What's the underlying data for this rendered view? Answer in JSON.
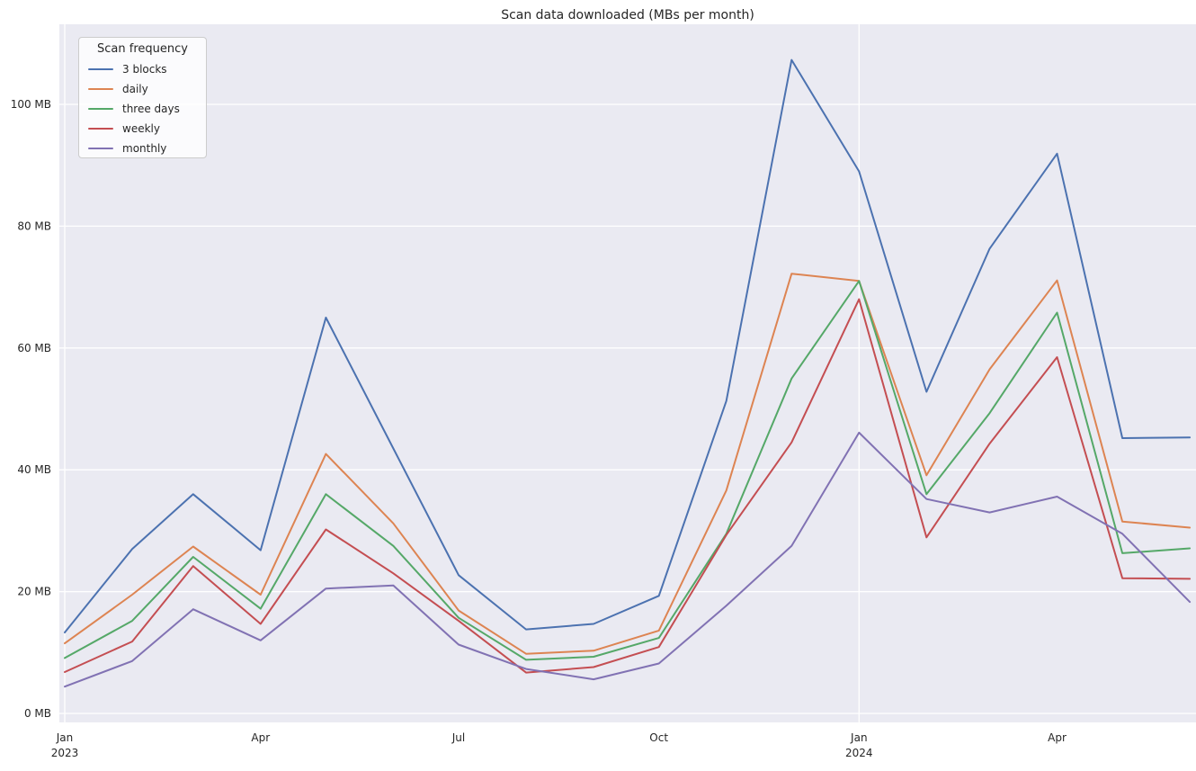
{
  "title": "Scan data downloaded (MBs per month)",
  "legend": {
    "title": "Scan frequency",
    "position": "upper left"
  },
  "axes": {
    "background_color": "#EAEAF2",
    "gridline_color": "#FFFFFF",
    "text_color": "#262626",
    "y_ticks": [
      {
        "value": 0,
        "label": "0 MB"
      },
      {
        "value": 20,
        "label": "20 MB"
      },
      {
        "value": 40,
        "label": "40 MB"
      },
      {
        "value": 60,
        "label": "60 MB"
      },
      {
        "value": 80,
        "label": "80 MB"
      },
      {
        "value": 100,
        "label": "100 MB"
      }
    ],
    "x_ticks": [
      {
        "day": 0,
        "label": "Jan",
        "year": "2023"
      },
      {
        "day": 90,
        "label": "Apr",
        "year": ""
      },
      {
        "day": 181,
        "label": "Jul",
        "year": ""
      },
      {
        "day": 273,
        "label": "Oct",
        "year": ""
      },
      {
        "day": 365,
        "label": "Jan",
        "year": "2024"
      },
      {
        "day": 456,
        "label": "Apr",
        "year": ""
      }
    ]
  },
  "chart_data": {
    "type": "line",
    "title": "Scan data downloaded (MBs per month)",
    "xlabel": "",
    "ylabel": "",
    "unit": "MB",
    "ylim": [
      -1.5,
      113.2
    ],
    "grid": "horizontal white gridlines on lavender background, vertical gridline at year boundary",
    "legend_position": "upper left",
    "x": [
      "2023-01",
      "2023-02",
      "2023-03",
      "2023-04",
      "2023-05",
      "2023-06",
      "2023-07",
      "2023-08",
      "2023-09",
      "2023-10",
      "2023-11",
      "2023-12",
      "2024-01",
      "2024-02",
      "2024-03",
      "2024-04",
      "2024-05",
      "2024-06"
    ],
    "x_day_offsets": [
      0,
      31,
      59,
      90,
      120,
      151,
      181,
      212,
      243,
      273,
      304,
      334,
      365,
      396,
      425,
      456,
      486,
      517
    ],
    "series": [
      {
        "name": "3 blocks",
        "color": "#4C72B0",
        "values": [
          13.3,
          27.0,
          36.0,
          26.8,
          65.0,
          43.5,
          22.7,
          13.8,
          14.7,
          19.3,
          51.3,
          107.3,
          89.0,
          52.8,
          76.3,
          91.9,
          45.2,
          45.3
        ]
      },
      {
        "name": "daily",
        "color": "#DD8452",
        "values": [
          11.5,
          19.5,
          27.4,
          19.5,
          42.6,
          31.2,
          16.9,
          9.8,
          10.3,
          13.6,
          36.6,
          72.2,
          71.0,
          39.1,
          56.5,
          71.1,
          31.5,
          30.5
        ]
      },
      {
        "name": "three days",
        "color": "#55A868",
        "values": [
          9.1,
          15.2,
          25.7,
          17.2,
          36.0,
          27.5,
          15.7,
          8.8,
          9.3,
          12.4,
          29.5,
          55.0,
          71.0,
          36.0,
          49.3,
          65.8,
          26.3,
          27.1
        ]
      },
      {
        "name": "weekly",
        "color": "#C44E52",
        "values": [
          6.8,
          11.8,
          24.2,
          14.7,
          30.2,
          23.0,
          15.2,
          6.7,
          7.6,
          10.9,
          29.3,
          44.5,
          68.0,
          28.9,
          44.3,
          58.5,
          22.2,
          22.1
        ]
      },
      {
        "name": "monthly",
        "color": "#8172B3",
        "values": [
          4.4,
          8.6,
          17.1,
          12.0,
          20.5,
          21.0,
          11.3,
          7.3,
          5.6,
          8.2,
          17.7,
          27.5,
          46.1,
          35.2,
          33.0,
          35.6,
          29.5,
          18.3
        ]
      }
    ]
  }
}
